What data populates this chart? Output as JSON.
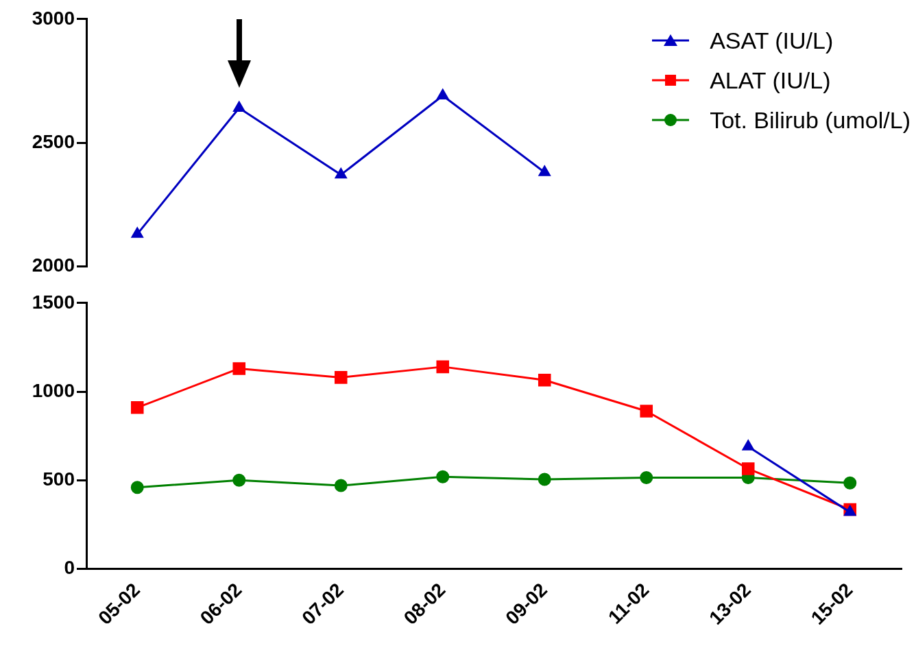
{
  "chart_data": [
    {
      "type": "line",
      "ylim": [
        2000,
        3000
      ],
      "yticks": [
        2000,
        2500,
        3000
      ],
      "tick_labels": "y",
      "grid": false,
      "legend": "top right",
      "series": [
        {
          "name": "ASAT (IU/L)",
          "color": "#0000c0",
          "marker": "triangle",
          "values": [
            2130,
            2640,
            2370,
            2690,
            2380,
            null,
            null,
            null
          ]
        },
        {
          "name": "ALAT (IU/L)",
          "color": "#ff0000",
          "marker": "square",
          "values": [
            null,
            null,
            null,
            null,
            null,
            null,
            null,
            null
          ]
        },
        {
          "name": "Tot. Bilirub (umol/L)",
          "color": "#008000",
          "marker": "circle",
          "values": [
            null,
            null,
            null,
            null,
            null,
            null,
            null,
            null
          ]
        }
      ]
    },
    {
      "type": "line",
      "categories": [
        "05-02",
        "06-02",
        "07-02",
        "08-02",
        "09-02",
        "11-02",
        "13-02",
        "15-02"
      ],
      "ylim": [
        0,
        1500
      ],
      "yticks": [
        0,
        500,
        1000,
        1500
      ],
      "grid": false,
      "legend": false,
      "series": [
        {
          "color": "#0000c0",
          "marker": "triangle",
          "values": [
            null,
            null,
            null,
            null,
            null,
            null,
            690,
            320
          ]
        },
        {
          "color": "#ff0000",
          "marker": "square",
          "values": [
            910,
            1130,
            1080,
            1140,
            1065,
            890,
            565,
            335
          ]
        },
        {
          "color": "#008000",
          "marker": "circle",
          "values": [
            460,
            500,
            470,
            520,
            505,
            515,
            515,
            485
          ]
        }
      ]
    }
  ]
}
